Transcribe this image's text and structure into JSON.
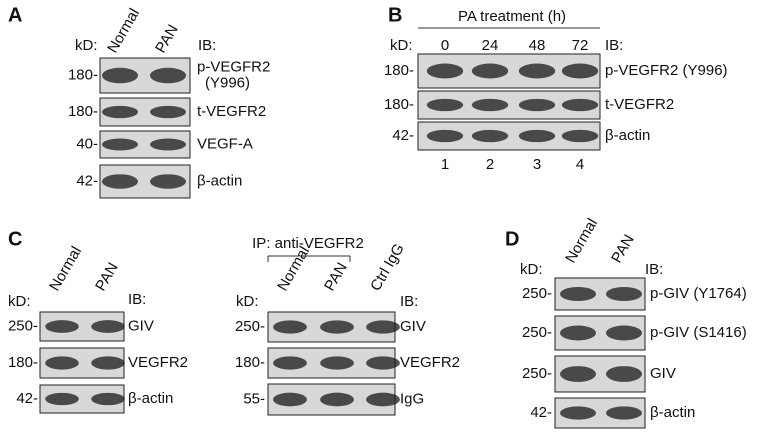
{
  "panels": [
    {
      "label": "A",
      "blocks": [
        {
          "kd_header": "kD:",
          "ib_header": "IB:",
          "lanes": [
            "Normal",
            "PAN"
          ],
          "blots": [
            {
              "kd": "180-",
              "ib": [
                "p-VEGFR2",
                "(Y996)"
              ]
            },
            {
              "kd": "180-",
              "ib": [
                "t-VEGFR2"
              ]
            },
            {
              "kd": "40-",
              "ib": [
                "VEGF-A"
              ]
            },
            {
              "kd": "42-",
              "ib": [
                "β-actin"
              ]
            }
          ]
        }
      ]
    },
    {
      "label": "B",
      "blocks": [
        {
          "header": "PA treatment (h)",
          "kd_header": "kD:",
          "ib_header": "IB:",
          "lanes": [
            "0",
            "24",
            "48",
            "72"
          ],
          "lane_numbers": [
            "1",
            "2",
            "3",
            "4"
          ],
          "blots": [
            {
              "kd": "180-",
              "ib": [
                "p-VEGFR2 (Y996)"
              ]
            },
            {
              "kd": "180-",
              "ib": [
                "t-VEGFR2"
              ]
            },
            {
              "kd": "42-",
              "ib": [
                "β-actin"
              ]
            }
          ]
        }
      ]
    },
    {
      "label": "C",
      "blocks": [
        {
          "kd_header": "kD:",
          "ib_header": "IB:",
          "lanes": [
            "Normal",
            "PAN"
          ],
          "blots": [
            {
              "kd": "250-",
              "ib": [
                "GIV"
              ]
            },
            {
              "kd": "180-",
              "ib": [
                "VEGFR2"
              ]
            },
            {
              "kd": "42-",
              "ib": [
                "β-actin"
              ]
            }
          ]
        },
        {
          "header": "IP: anti-VEGFR2",
          "kd_header": "kD:",
          "ib_header": "IB:",
          "lanes": [
            "Normal",
            "PAN",
            "Ctrl IgG"
          ],
          "blots": [
            {
              "kd": "250-",
              "ib": [
                "GIV"
              ]
            },
            {
              "kd": "180-",
              "ib": [
                "VEGFR2"
              ]
            },
            {
              "kd": "55-",
              "ib": [
                "IgG"
              ]
            }
          ]
        }
      ]
    },
    {
      "label": "D",
      "blocks": [
        {
          "kd_header": "kD:",
          "ib_header": "IB:",
          "lanes": [
            "Normal",
            "PAN"
          ],
          "blots": [
            {
              "kd": "250-",
              "ib": [
                "p-GIV (Y1764)"
              ]
            },
            {
              "kd": "250-",
              "ib": [
                "p-GIV (S1416)"
              ]
            },
            {
              "kd": "250-",
              "ib": [
                "GIV"
              ]
            },
            {
              "kd": "42-",
              "ib": [
                "β-actin"
              ]
            }
          ]
        }
      ]
    }
  ]
}
